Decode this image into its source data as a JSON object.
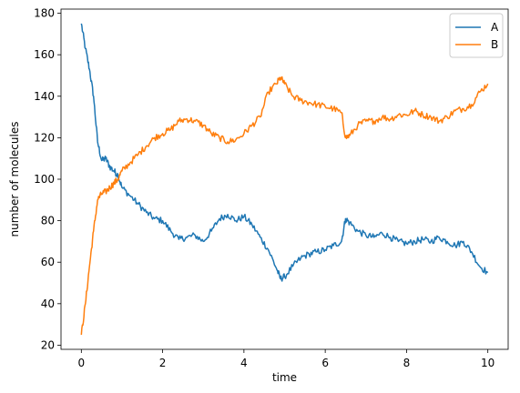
{
  "chart_data": {
    "type": "line",
    "title": "",
    "xlabel": "time",
    "ylabel": "number of molecules",
    "xlim": [
      -0.5,
      10.5
    ],
    "ylim": [
      18,
      182
    ],
    "xticks": [
      0,
      2,
      4,
      6,
      8,
      10
    ],
    "yticks": [
      20,
      40,
      60,
      80,
      100,
      120,
      140,
      160,
      180
    ],
    "grid": false,
    "legend": "top-right",
    "series": [
      {
        "name": "A",
        "color": "#1f77b4",
        "x": [
          0,
          0.1,
          0.2,
          0.3,
          0.4,
          0.5,
          0.6,
          0.7,
          0.8,
          0.9,
          1.0,
          1.2,
          1.4,
          1.6,
          1.8,
          2.0,
          2.2,
          2.4,
          2.6,
          2.8,
          3.0,
          3.2,
          3.4,
          3.6,
          3.8,
          4.0,
          4.2,
          4.4,
          4.6,
          4.8,
          4.9,
          5.0,
          5.2,
          5.4,
          5.6,
          5.8,
          6.0,
          6.2,
          6.4,
          6.5,
          6.6,
          6.8,
          7.0,
          7.2,
          7.4,
          7.6,
          7.8,
          8.0,
          8.2,
          8.4,
          8.6,
          8.8,
          9.0,
          9.2,
          9.4,
          9.6,
          9.8,
          10.0
        ],
        "y": [
          175,
          163,
          153,
          140,
          118,
          109,
          110,
          106,
          104,
          102,
          96,
          92,
          88,
          84,
          81,
          80,
          75,
          71,
          72,
          73,
          70,
          75,
          81,
          83,
          80,
          82,
          78,
          72,
          66,
          57,
          52,
          53,
          58,
          62,
          64,
          65,
          66,
          68,
          70,
          81,
          79,
          75,
          73,
          72,
          74,
          72,
          70,
          69,
          70,
          71,
          70,
          72,
          70,
          68,
          70,
          65,
          58,
          55
        ]
      },
      {
        "name": "B",
        "color": "#ff7f0e",
        "x": [
          0,
          0.1,
          0.2,
          0.3,
          0.4,
          0.5,
          0.6,
          0.7,
          0.8,
          0.9,
          1.0,
          1.2,
          1.4,
          1.6,
          1.8,
          2.0,
          2.2,
          2.4,
          2.6,
          2.8,
          3.0,
          3.2,
          3.4,
          3.6,
          3.8,
          4.0,
          4.2,
          4.4,
          4.6,
          4.8,
          4.9,
          5.0,
          5.2,
          5.4,
          5.6,
          5.8,
          6.0,
          6.2,
          6.4,
          6.5,
          6.6,
          6.8,
          7.0,
          7.2,
          7.4,
          7.6,
          7.8,
          8.0,
          8.2,
          8.4,
          8.6,
          8.8,
          9.0,
          9.2,
          9.4,
          9.6,
          9.8,
          10.0
        ],
        "y": [
          25,
          40,
          58,
          75,
          90,
          93,
          94,
          96,
          98,
          100,
          104,
          108,
          112,
          116,
          120,
          122,
          124,
          128,
          129,
          128,
          126,
          122,
          120,
          118,
          119,
          122,
          126,
          130,
          142,
          146,
          149,
          146,
          140,
          138,
          137,
          136,
          135,
          134,
          132,
          120,
          121,
          126,
          128,
          128,
          130,
          129,
          131,
          131,
          133,
          131,
          130,
          128,
          130,
          133,
          134,
          136,
          142,
          146
        ]
      }
    ]
  }
}
